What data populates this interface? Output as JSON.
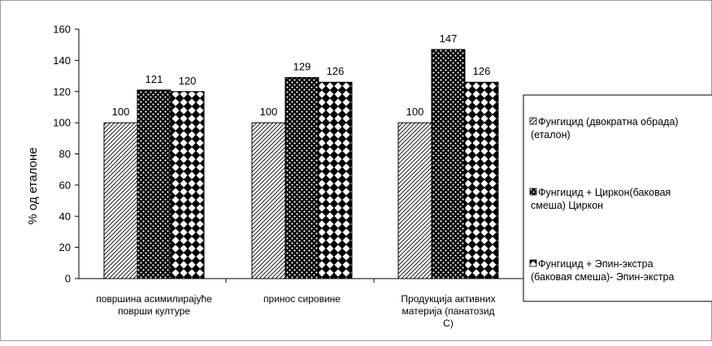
{
  "chart_data": {
    "type": "bar",
    "title": "",
    "xlabel": "",
    "ylabel": "% од еталоне",
    "ylim": [
      0,
      160
    ],
    "yticks": [
      0,
      20,
      40,
      60,
      80,
      100,
      120,
      140,
      160
    ],
    "grid": false,
    "legend_position": "right",
    "categories": [
      [
        "површина асимилирајуће",
        "површи културе"
      ],
      [
        "принос сировине"
      ],
      [
        "Продукција активних",
        "материја      (панатозид",
        "С)"
      ]
    ],
    "series": [
      {
        "name": [
          "Фунгицид (двократна обрада)",
          "(еталон)"
        ],
        "values": [
          100,
          100,
          100
        ],
        "pattern": "diagonal-hatch"
      },
      {
        "name": [
          "Фунгицид + Циркон(баковая",
          "смеша) Циркон"
        ],
        "values": [
          121,
          129,
          147
        ],
        "pattern": "dense-checker"
      },
      {
        "name": [
          "Фунгицид + Эпин-экстра",
          "(баковая смеша)- Эпин-экстра"
        ],
        "values": [
          120,
          126,
          126
        ],
        "pattern": "diamond-checker"
      }
    ],
    "colors": {
      "axis": "#000000",
      "bar_fill_dark": "#000000",
      "bar_fill_light": "#ffffff",
      "frame": "#9a9a9a"
    }
  }
}
